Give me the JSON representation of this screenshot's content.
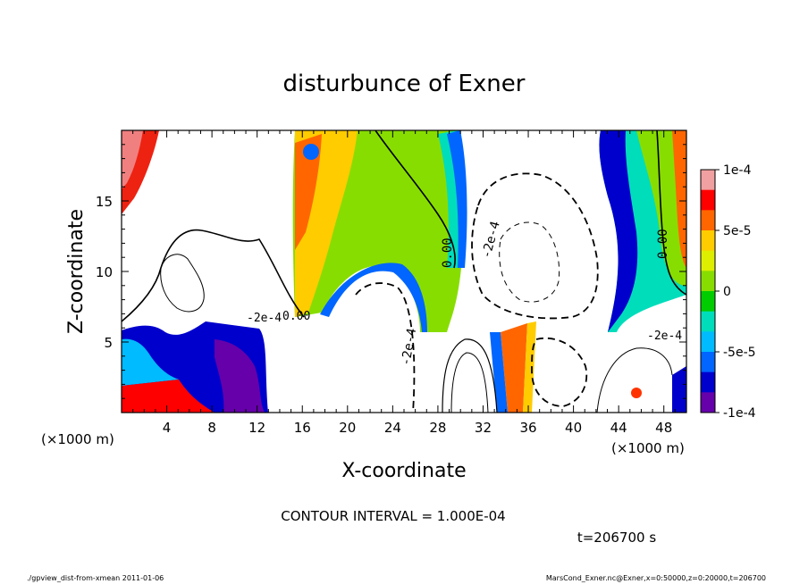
{
  "chart_data": {
    "type": "heatmap",
    "title": "disturbunce of Exner",
    "xlabel": "X-coordinate",
    "ylabel": "Z-coordinate",
    "x_unit": "(×1000 m)",
    "z_unit": "(×1000 m)",
    "xlim": [
      0,
      50
    ],
    "ylim": [
      0,
      20
    ],
    "x_ticks": [
      "4",
      "8",
      "12",
      "16",
      "20",
      "24",
      "28",
      "32",
      "36",
      "40",
      "44",
      "48"
    ],
    "y_ticks": [
      "5",
      "10",
      "15"
    ],
    "colorbar": {
      "range": [
        -0.0001,
        0.0001
      ],
      "tick_labels": [
        "1e-4",
        "5e-5",
        "0",
        "-5e-5",
        "-1e-4"
      ],
      "colors": [
        "#f0a0a0",
        "#ff0000",
        "#ff6600",
        "#ffcc00",
        "#ddee00",
        "#88dd00",
        "#00cc00",
        "#00ddbb",
        "#00bbff",
        "#0066ff",
        "#0000cc",
        "#6600aa"
      ]
    },
    "contour_labels": [
      "0.00",
      "0.00",
      "0.00",
      "-2e-4",
      "-2e-4",
      "-2e-4",
      "-2e-4"
    ],
    "contour_interval": "CONTOUR INTERVAL = 1.000E-04",
    "time": "t=206700 s"
  },
  "footer": {
    "left": "./gpview_dist-from-xmean  2011-01-06",
    "right": "MarsCond_Exner.nc@Exner,x=0:50000,z=0:20000,t=206700"
  }
}
